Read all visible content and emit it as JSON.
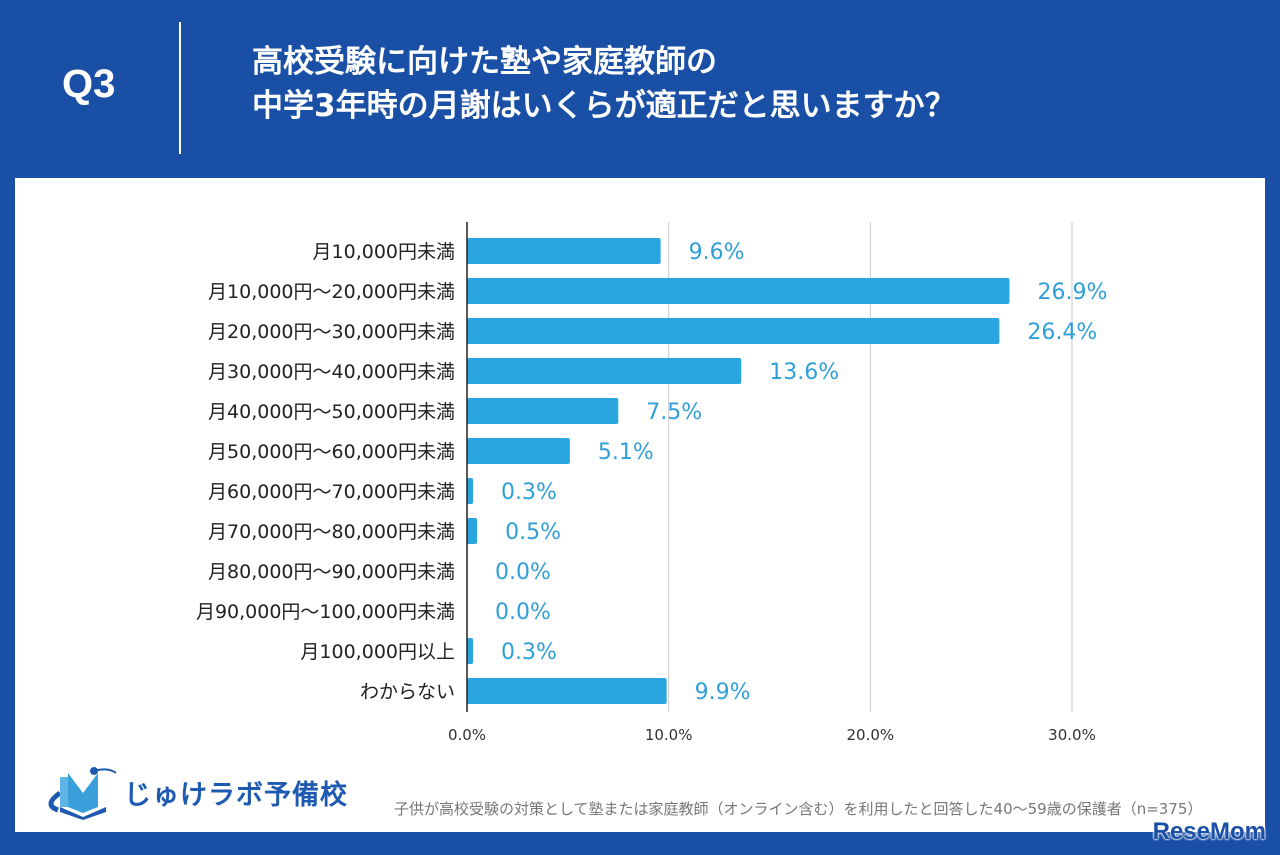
{
  "header": {
    "question_no": "Q3",
    "title_line1": "高校受験に向けた塾や家庭教師の",
    "title_line2": "中学3年時の月謝はいくらが適正だと思いますか？"
  },
  "chart_data": {
    "type": "bar",
    "orientation": "horizontal",
    "categories": [
      "月10,000円未満",
      "月10,000円～20,000円未満",
      "月20,000円～30,000円未満",
      "月30,000円～40,000円未満",
      "月40,000円～50,000円未満",
      "月50,000円～60,000円未満",
      "月60,000円～70,000円未満",
      "月70,000円～80,000円未満",
      "月80,000円～90,000円未満",
      "月90,000円～100,000円未満",
      "月100,000円以上",
      "わからない"
    ],
    "values": [
      9.6,
      26.9,
      26.4,
      13.6,
      7.5,
      5.1,
      0.3,
      0.5,
      0.0,
      0.0,
      0.3,
      9.9
    ],
    "data_labels": [
      "9.6%",
      "26.9%",
      "26.4%",
      "13.6%",
      "7.5%",
      "5.1%",
      "0.3%",
      "0.5%",
      "0.0%",
      "0.0%",
      "0.3%",
      "9.9%"
    ],
    "xlim": [
      0,
      30
    ],
    "x_ticks": [
      "0.0%",
      "10.0%",
      "20.0%",
      "30.0%"
    ],
    "grid": true,
    "bar_color": "#29a6e0"
  },
  "footer": {
    "logo_text": "じゅけラボ予備校",
    "note": "子供が高校受験の対策として塾または家庭教師（オンライン含む）を利用したと回答した40～59歳の保護者（n=375）",
    "watermark": "ReseMom"
  },
  "colors": {
    "background": "#1a4fa6",
    "bar": "#29a6e0",
    "value_label": "#2f9fd8"
  }
}
